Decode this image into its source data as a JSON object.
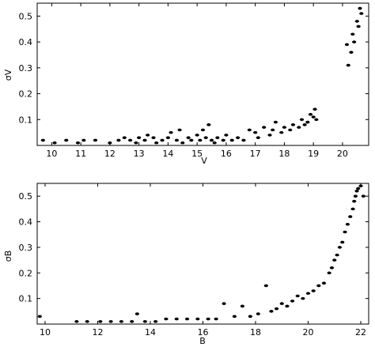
{
  "chart_data": [
    {
      "type": "scatter",
      "xlabel": "V",
      "ylabel": "σV",
      "xlim": [
        9.5,
        20.9
      ],
      "ylim": [
        0.0,
        0.55
      ],
      "xticks": [
        "10",
        "11",
        "12",
        "13",
        "14",
        "15",
        "16",
        "17",
        "18",
        "19",
        "20"
      ],
      "xtick_values": [
        10,
        11,
        12,
        13,
        14,
        15,
        16,
        17,
        18,
        19,
        20
      ],
      "yticks": [
        "0.1",
        "0.2",
        "0.3",
        "0.4",
        "0.5"
      ],
      "ytick_values": [
        0.1,
        0.2,
        0.3,
        0.4,
        0.5
      ],
      "grid": false,
      "points": [
        [
          9.7,
          0.02
        ],
        [
          10.1,
          0.01
        ],
        [
          10.5,
          0.02
        ],
        [
          10.9,
          0.01
        ],
        [
          11.1,
          0.02
        ],
        [
          11.5,
          0.02
        ],
        [
          12.0,
          0.01
        ],
        [
          12.3,
          0.02
        ],
        [
          12.5,
          0.03
        ],
        [
          12.7,
          0.02
        ],
        [
          12.9,
          0.01
        ],
        [
          13.0,
          0.03
        ],
        [
          13.2,
          0.02
        ],
        [
          13.3,
          0.04
        ],
        [
          13.5,
          0.03
        ],
        [
          13.6,
          0.01
        ],
        [
          13.8,
          0.02
        ],
        [
          14.0,
          0.03
        ],
        [
          14.1,
          0.05
        ],
        [
          14.3,
          0.02
        ],
        [
          14.4,
          0.06
        ],
        [
          14.5,
          0.01
        ],
        [
          14.7,
          0.03
        ],
        [
          14.8,
          0.02
        ],
        [
          15.0,
          0.04
        ],
        [
          15.1,
          0.02
        ],
        [
          15.2,
          0.06
        ],
        [
          15.3,
          0.03
        ],
        [
          15.4,
          0.08
        ],
        [
          15.5,
          0.02
        ],
        [
          15.6,
          0.01
        ],
        [
          15.7,
          0.03
        ],
        [
          15.9,
          0.02
        ],
        [
          16.0,
          0.04
        ],
        [
          16.2,
          0.02
        ],
        [
          16.4,
          0.03
        ],
        [
          16.6,
          0.02
        ],
        [
          16.8,
          0.06
        ],
        [
          17.0,
          0.05
        ],
        [
          17.1,
          0.03
        ],
        [
          17.3,
          0.07
        ],
        [
          17.5,
          0.04
        ],
        [
          17.6,
          0.06
        ],
        [
          17.7,
          0.09
        ],
        [
          17.9,
          0.05
        ],
        [
          18.0,
          0.07
        ],
        [
          18.2,
          0.06
        ],
        [
          18.3,
          0.08
        ],
        [
          18.5,
          0.07
        ],
        [
          18.6,
          0.1
        ],
        [
          18.7,
          0.08
        ],
        [
          18.8,
          0.09
        ],
        [
          18.9,
          0.12
        ],
        [
          19.0,
          0.11
        ],
        [
          19.05,
          0.14
        ],
        [
          19.1,
          0.1
        ],
        [
          20.15,
          0.39
        ],
        [
          20.2,
          0.31
        ],
        [
          20.3,
          0.36
        ],
        [
          20.35,
          0.43
        ],
        [
          20.4,
          0.4
        ],
        [
          20.5,
          0.48
        ],
        [
          20.55,
          0.46
        ],
        [
          20.6,
          0.53
        ],
        [
          20.65,
          0.51
        ]
      ]
    },
    {
      "type": "scatter",
      "xlabel": "B",
      "ylabel": "σB",
      "xlim": [
        9.7,
        22.3
      ],
      "ylim": [
        0.0,
        0.55
      ],
      "xticks": [
        "10",
        "12",
        "14",
        "16",
        "18",
        "20",
        "22"
      ],
      "xtick_values": [
        10,
        12,
        14,
        16,
        18,
        20,
        22
      ],
      "yticks": [
        "0.1",
        "0.2",
        "0.3",
        "0.4",
        "0.5"
      ],
      "ytick_values": [
        0.1,
        0.2,
        0.3,
        0.4,
        0.5
      ],
      "grid": false,
      "points": [
        [
          9.8,
          0.03
        ],
        [
          11.2,
          0.01
        ],
        [
          11.6,
          0.01
        ],
        [
          12.1,
          0.01
        ],
        [
          12.5,
          0.01
        ],
        [
          12.9,
          0.01
        ],
        [
          13.3,
          0.01
        ],
        [
          13.5,
          0.04
        ],
        [
          13.8,
          0.01
        ],
        [
          14.2,
          0.01
        ],
        [
          14.6,
          0.02
        ],
        [
          15.0,
          0.02
        ],
        [
          15.4,
          0.02
        ],
        [
          15.8,
          0.02
        ],
        [
          16.2,
          0.02
        ],
        [
          16.5,
          0.02
        ],
        [
          16.8,
          0.08
        ],
        [
          17.2,
          0.03
        ],
        [
          17.5,
          0.07
        ],
        [
          17.8,
          0.03
        ],
        [
          18.1,
          0.04
        ],
        [
          18.4,
          0.15
        ],
        [
          18.6,
          0.05
        ],
        [
          18.8,
          0.06
        ],
        [
          19.0,
          0.08
        ],
        [
          19.2,
          0.07
        ],
        [
          19.4,
          0.09
        ],
        [
          19.6,
          0.11
        ],
        [
          19.8,
          0.1
        ],
        [
          20.0,
          0.12
        ],
        [
          20.2,
          0.13
        ],
        [
          20.4,
          0.15
        ],
        [
          20.6,
          0.16
        ],
        [
          20.8,
          0.2
        ],
        [
          20.9,
          0.22
        ],
        [
          21.0,
          0.25
        ],
        [
          21.1,
          0.27
        ],
        [
          21.2,
          0.3
        ],
        [
          21.3,
          0.32
        ],
        [
          21.4,
          0.36
        ],
        [
          21.5,
          0.39
        ],
        [
          21.6,
          0.42
        ],
        [
          21.7,
          0.45
        ],
        [
          21.75,
          0.48
        ],
        [
          21.8,
          0.5
        ],
        [
          21.85,
          0.52
        ],
        [
          21.9,
          0.53
        ],
        [
          22.0,
          0.54
        ],
        [
          22.1,
          0.5
        ]
      ]
    }
  ]
}
